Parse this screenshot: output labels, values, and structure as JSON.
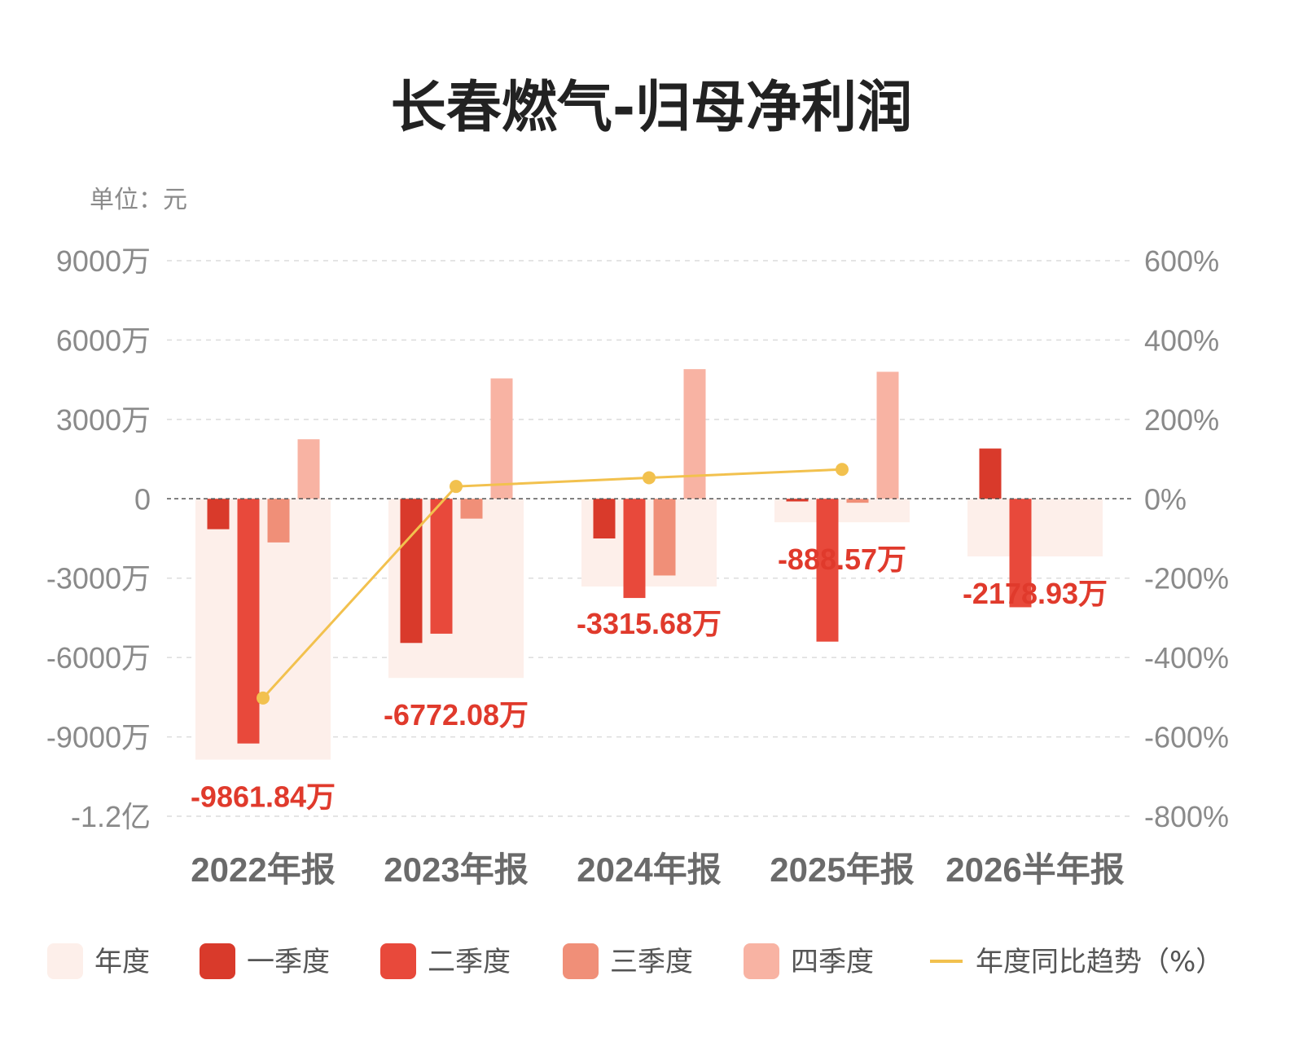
{
  "chart_data": {
    "type": "bar",
    "title": "长春燃气-归母净利润",
    "unit_label": "单位：元",
    "categories": [
      "2022年报",
      "2023年报",
      "2024年报",
      "2025年报",
      "2026半年报"
    ],
    "y_left": {
      "ylim": [
        -120000000,
        90000000
      ],
      "ticks": [
        90000000,
        60000000,
        30000000,
        0,
        -30000000,
        -60000000,
        -90000000,
        -120000000
      ],
      "tick_labels": [
        "9000万",
        "6000万",
        "3000万",
        "0",
        "-3000万",
        "-6000万",
        "-9000万",
        "-1.2亿"
      ]
    },
    "y_right": {
      "ylim": [
        -800,
        600
      ],
      "ticks": [
        600,
        400,
        200,
        0,
        -200,
        -400,
        -600,
        -800
      ],
      "tick_labels": [
        "600%",
        "400%",
        "200%",
        "0%",
        "-200%",
        "-400%",
        "-600%",
        "-800%"
      ]
    },
    "series": [
      {
        "name": "年度",
        "color": "#fdefea",
        "values": [
          -98618400,
          -67720800,
          -33156800,
          -8885700,
          -21789300
        ]
      },
      {
        "name": "一季度",
        "color": "#d93a2b",
        "values": [
          -11500000,
          -54500000,
          -15000000,
          -1000000,
          19000000
        ]
      },
      {
        "name": "二季度",
        "color": "#e8493b",
        "values": [
          -92500000,
          -51000000,
          -37500000,
          -54000000,
          -41000000
        ]
      },
      {
        "name": "三季度",
        "color": "#f08f78",
        "values": [
          -16500000,
          -7500000,
          -29000000,
          -1500000,
          null
        ]
      },
      {
        "name": "四季度",
        "color": "#f8b3a3",
        "values": [
          22500000,
          45500000,
          49000000,
          48000000,
          null
        ]
      }
    ],
    "line_series": {
      "name": "年度同比趋势（%）",
      "color": "#f2c14e",
      "values": [
        -502,
        31,
        53,
        74,
        null
      ]
    },
    "data_labels": [
      "-9861.84万",
      "-6772.08万",
      "-3315.68万",
      "-888.57万",
      "-2178.93万"
    ],
    "label_color": "#e03a2c",
    "grid": true
  }
}
